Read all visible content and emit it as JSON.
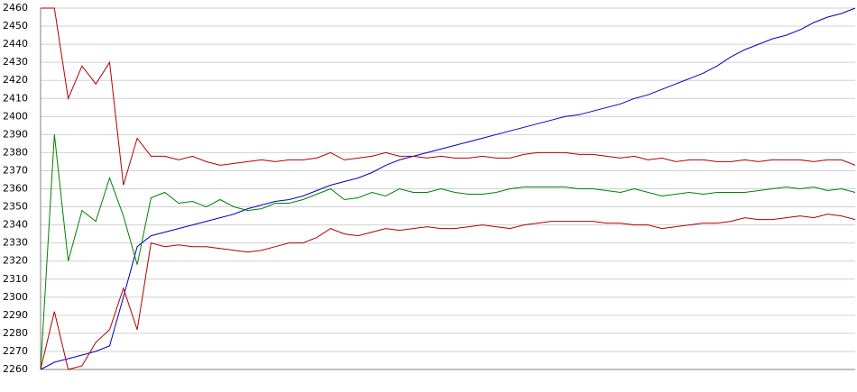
{
  "chart_data": {
    "type": "line",
    "ylim": [
      2260,
      2460
    ],
    "yticks": [
      2260,
      2270,
      2280,
      2290,
      2300,
      2310,
      2320,
      2330,
      2340,
      2350,
      2360,
      2370,
      2380,
      2390,
      2400,
      2410,
      2420,
      2430,
      2440,
      2450,
      2460
    ],
    "grid": true,
    "series": [
      {
        "color": "#0000c0",
        "values": [
          2260,
          2264,
          2266,
          2268,
          2270,
          2273,
          2300,
          2328,
          2334,
          2336,
          2338,
          2340,
          2342,
          2344,
          2346,
          2349,
          2351,
          2353,
          2354,
          2356,
          2359,
          2362,
          2364,
          2366,
          2369,
          2373,
          2376,
          2378,
          2380,
          2382,
          2384,
          2386,
          2388,
          2390,
          2392,
          2394,
          2396,
          2398,
          2400,
          2401,
          2403,
          2405,
          2407,
          2410,
          2412,
          2415,
          2418,
          2421,
          2424,
          2428,
          2433,
          2437,
          2440,
          2443,
          2445,
          2448,
          2452,
          2455,
          2457,
          2460
        ]
      },
      {
        "color": "#008000",
        "values": [
          2260,
          2390,
          2320,
          2348,
          2342,
          2366,
          2345,
          2318,
          2355,
          2358,
          2352,
          2353,
          2350,
          2354,
          2350,
          2348,
          2349,
          2352,
          2352,
          2354,
          2357,
          2360,
          2354,
          2355,
          2358,
          2356,
          2360,
          2358,
          2358,
          2360,
          2358,
          2357,
          2357,
          2358,
          2360,
          2361,
          2361,
          2361,
          2361,
          2360,
          2360,
          2359,
          2358,
          2360,
          2358,
          2356,
          2357,
          2358,
          2357,
          2358,
          2358,
          2358,
          2359,
          2360,
          2361,
          2360,
          2361,
          2359,
          2360,
          2358
        ]
      },
      {
        "color": "#b00000",
        "values": [
          2460,
          2460,
          2410,
          2428,
          2418,
          2430,
          2362,
          2388,
          2378,
          2378,
          2376,
          2378,
          2375,
          2373,
          2374,
          2375,
          2376,
          2375,
          2376,
          2376,
          2377,
          2380,
          2376,
          2377,
          2378,
          2380,
          2378,
          2378,
          2377,
          2378,
          2377,
          2377,
          2378,
          2377,
          2377,
          2379,
          2380,
          2380,
          2380,
          2379,
          2379,
          2378,
          2377,
          2378,
          2376,
          2377,
          2375,
          2376,
          2376,
          2375,
          2375,
          2376,
          2375,
          2376,
          2376,
          2376,
          2375,
          2376,
          2376,
          2373
        ]
      },
      {
        "color": "#b00000",
        "values": [
          2260,
          2292,
          2260,
          2262,
          2275,
          2282,
          2305,
          2282,
          2330,
          2328,
          2329,
          2328,
          2328,
          2327,
          2326,
          2325,
          2326,
          2328,
          2330,
          2330,
          2333,
          2338,
          2335,
          2334,
          2336,
          2338,
          2337,
          2338,
          2339,
          2338,
          2338,
          2339,
          2340,
          2339,
          2338,
          2340,
          2341,
          2342,
          2342,
          2342,
          2342,
          2341,
          2341,
          2340,
          2340,
          2338,
          2339,
          2340,
          2341,
          2341,
          2342,
          2344,
          2343,
          2343,
          2344,
          2345,
          2344,
          2346,
          2345,
          2343
        ]
      }
    ]
  }
}
